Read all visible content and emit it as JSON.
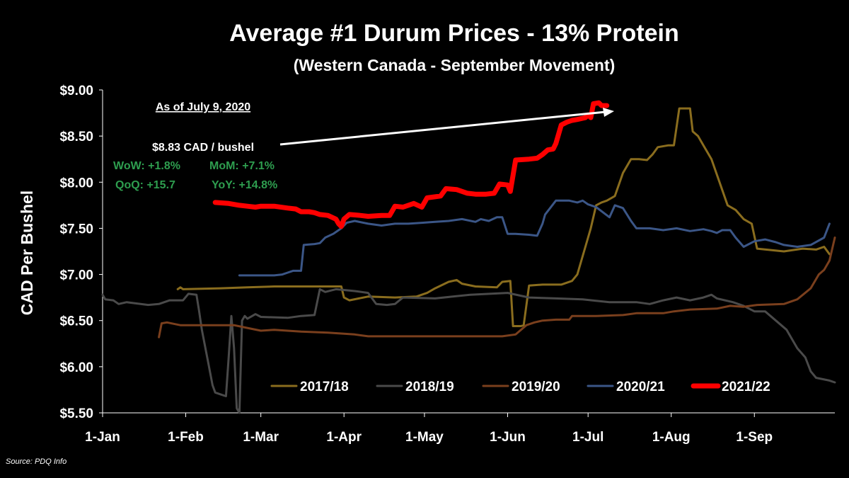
{
  "colors": {
    "background": "#000000",
    "text": "#ffffff",
    "stats_green": "#2e9e4f",
    "arrow": "#ffffff",
    "series_2017_18": "#8a6d1e",
    "series_2018_19": "#4a4a4a",
    "series_2019_20": "#7a3f1d",
    "series_2020_21": "#3b5687",
    "series_2021_22": "#ff0000"
  },
  "annotation": {
    "as_of": "As of July 9, 2020",
    "price": "$8.83 CAD / bushel",
    "wow": "WoW: +1.8%",
    "mom": "MoM: +7.1%",
    "qoq": "QoQ: +15.7",
    "yoy": "YoY: +14.8%"
  },
  "source": "Source: PDQ Info",
  "chart_data": {
    "type": "line",
    "title": "Average #1 Durum Prices - 13% Protein",
    "subtitle": "(Western Canada - September Movement)",
    "xlabel": "",
    "ylabel": "CAD Per Bushel",
    "x_unit": "day of year",
    "x_range": [
      1,
      272
    ],
    "ylim": [
      5.5,
      9.0
    ],
    "x_ticks": [
      {
        "day": 1,
        "label": "1-Jan"
      },
      {
        "day": 32,
        "label": "1-Feb"
      },
      {
        "day": 60,
        "label": "1-Mar"
      },
      {
        "day": 91,
        "label": "1-Apr"
      },
      {
        "day": 121,
        "label": "1-May"
      },
      {
        "day": 152,
        "label": "1-Jun"
      },
      {
        "day": 182,
        "label": "1-Jul"
      },
      {
        "day": 213,
        "label": "1-Aug"
      },
      {
        "day": 244,
        "label": "1-Sep"
      }
    ],
    "y_ticks": [
      {
        "value": 5.5,
        "label": "$5.50"
      },
      {
        "value": 6.0,
        "label": "$6.00"
      },
      {
        "value": 6.5,
        "label": "$6.50"
      },
      {
        "value": 7.0,
        "label": "$7.00"
      },
      {
        "value": 7.5,
        "label": "$7.50"
      },
      {
        "value": 8.0,
        "label": "$8.00"
      },
      {
        "value": 8.5,
        "label": "$8.50"
      },
      {
        "value": 9.0,
        "label": "$9.00"
      }
    ],
    "grid": false,
    "legend_position": "bottom-right",
    "series": [
      {
        "name": "2017/18",
        "color": "#8a6d1e",
        "points": [
          [
            29,
            6.84
          ],
          [
            30,
            6.86
          ],
          [
            31,
            6.84
          ],
          [
            45,
            6.85
          ],
          [
            55,
            6.86
          ],
          [
            65,
            6.87
          ],
          [
            80,
            6.87
          ],
          [
            90,
            6.87
          ],
          [
            91,
            6.75
          ],
          [
            93,
            6.72
          ],
          [
            100,
            6.76
          ],
          [
            110,
            6.75
          ],
          [
            118,
            6.76
          ],
          [
            122,
            6.8
          ],
          [
            125,
            6.85
          ],
          [
            130,
            6.92
          ],
          [
            133,
            6.94
          ],
          [
            135,
            6.9
          ],
          [
            140,
            6.87
          ],
          [
            148,
            6.86
          ],
          [
            150,
            6.92
          ],
          [
            153,
            6.93
          ],
          [
            154,
            6.44
          ],
          [
            157,
            6.44
          ],
          [
            158,
            6.45
          ],
          [
            160,
            6.88
          ],
          [
            165,
            6.89
          ],
          [
            172,
            6.89
          ],
          [
            176,
            6.93
          ],
          [
            178,
            7.0
          ],
          [
            180,
            7.2
          ],
          [
            182,
            7.4
          ],
          [
            183,
            7.5
          ],
          [
            185,
            7.75
          ],
          [
            187,
            7.78
          ],
          [
            189,
            7.8
          ],
          [
            192,
            7.85
          ],
          [
            195,
            8.1
          ],
          [
            198,
            8.25
          ],
          [
            201,
            8.25
          ],
          [
            204,
            8.24
          ],
          [
            206,
            8.3
          ],
          [
            208,
            8.38
          ],
          [
            212,
            8.4
          ],
          [
            214,
            8.4
          ],
          [
            216,
            8.8
          ],
          [
            220,
            8.8
          ],
          [
            221,
            8.55
          ],
          [
            223,
            8.5
          ],
          [
            225,
            8.4
          ],
          [
            228,
            8.25
          ],
          [
            231,
            8.0
          ],
          [
            234,
            7.75
          ],
          [
            237,
            7.7
          ],
          [
            240,
            7.6
          ],
          [
            243,
            7.55
          ],
          [
            245,
            7.28
          ],
          [
            255,
            7.25
          ],
          [
            262,
            7.28
          ],
          [
            267,
            7.27
          ],
          [
            270,
            7.3
          ],
          [
            272,
            7.22
          ]
        ]
      },
      {
        "name": "2018/19",
        "color": "#4a4a4a",
        "points": [
          [
            1,
            6.78
          ],
          [
            2,
            6.73
          ],
          [
            5,
            6.72
          ],
          [
            7,
            6.68
          ],
          [
            10,
            6.7
          ],
          [
            18,
            6.67
          ],
          [
            22,
            6.68
          ],
          [
            26,
            6.72
          ],
          [
            31,
            6.72
          ],
          [
            33,
            6.79
          ],
          [
            36,
            6.78
          ],
          [
            37,
            6.6
          ],
          [
            38,
            6.4
          ],
          [
            40,
            6.1
          ],
          [
            42,
            5.8
          ],
          [
            43,
            5.72
          ],
          [
            45,
            5.7
          ],
          [
            47,
            5.68
          ],
          [
            48,
            6.1
          ],
          [
            49,
            6.55
          ],
          [
            50,
            6.2
          ],
          [
            51,
            5.55
          ],
          [
            52,
            5.5
          ],
          [
            53,
            6.5
          ],
          [
            54,
            6.55
          ],
          [
            55,
            6.52
          ],
          [
            58,
            6.57
          ],
          [
            60,
            6.54
          ],
          [
            70,
            6.53
          ],
          [
            75,
            6.55
          ],
          [
            80,
            6.56
          ],
          [
            82,
            6.84
          ],
          [
            84,
            6.81
          ],
          [
            88,
            6.84
          ],
          [
            95,
            6.82
          ],
          [
            100,
            6.8
          ],
          [
            103,
            6.68
          ],
          [
            107,
            6.67
          ],
          [
            110,
            6.68
          ],
          [
            113,
            6.75
          ],
          [
            125,
            6.74
          ],
          [
            138,
            6.78
          ],
          [
            152,
            6.8
          ],
          [
            160,
            6.75
          ],
          [
            170,
            6.74
          ],
          [
            180,
            6.73
          ],
          [
            190,
            6.7
          ],
          [
            200,
            6.7
          ],
          [
            205,
            6.68
          ],
          [
            210,
            6.72
          ],
          [
            215,
            6.75
          ],
          [
            220,
            6.72
          ],
          [
            225,
            6.75
          ],
          [
            228,
            6.78
          ],
          [
            230,
            6.74
          ],
          [
            236,
            6.7
          ],
          [
            240,
            6.66
          ],
          [
            244,
            6.6
          ],
          [
            248,
            6.6
          ],
          [
            252,
            6.5
          ],
          [
            256,
            6.4
          ],
          [
            260,
            6.2
          ],
          [
            263,
            6.1
          ],
          [
            265,
            5.95
          ],
          [
            267,
            5.88
          ],
          [
            272,
            5.85
          ],
          [
            274,
            5.83
          ]
        ]
      },
      {
        "name": "2019/20",
        "color": "#7a3f1d",
        "points": [
          [
            22,
            6.32
          ],
          [
            23,
            6.47
          ],
          [
            25,
            6.48
          ],
          [
            30,
            6.45
          ],
          [
            40,
            6.45
          ],
          [
            50,
            6.45
          ],
          [
            55,
            6.42
          ],
          [
            60,
            6.39
          ],
          [
            65,
            6.4
          ],
          [
            75,
            6.38
          ],
          [
            85,
            6.37
          ],
          [
            95,
            6.35
          ],
          [
            100,
            6.33
          ],
          [
            120,
            6.33
          ],
          [
            150,
            6.33
          ],
          [
            155,
            6.35
          ],
          [
            157,
            6.4
          ],
          [
            159,
            6.45
          ],
          [
            162,
            6.48
          ],
          [
            165,
            6.5
          ],
          [
            170,
            6.51
          ],
          [
            175,
            6.51
          ],
          [
            176,
            6.55
          ],
          [
            185,
            6.55
          ],
          [
            195,
            6.56
          ],
          [
            200,
            6.58
          ],
          [
            210,
            6.58
          ],
          [
            214,
            6.6
          ],
          [
            220,
            6.62
          ],
          [
            230,
            6.63
          ],
          [
            235,
            6.66
          ],
          [
            240,
            6.65
          ],
          [
            245,
            6.67
          ],
          [
            255,
            6.68
          ],
          [
            260,
            6.73
          ],
          [
            265,
            6.85
          ],
          [
            268,
            7.0
          ],
          [
            270,
            7.05
          ],
          [
            272,
            7.15
          ],
          [
            274,
            7.4
          ]
        ]
      },
      {
        "name": "2020/21",
        "color": "#3b5687",
        "points": [
          [
            52,
            6.99
          ],
          [
            55,
            6.99
          ],
          [
            65,
            6.99
          ],
          [
            68,
            7.0
          ],
          [
            70,
            7.02
          ],
          [
            72,
            7.04
          ],
          [
            75,
            7.04
          ],
          [
            76,
            7.32
          ],
          [
            80,
            7.33
          ],
          [
            82,
            7.34
          ],
          [
            84,
            7.4
          ],
          [
            87,
            7.44
          ],
          [
            90,
            7.5
          ],
          [
            92,
            7.56
          ],
          [
            95,
            7.58
          ],
          [
            100,
            7.55
          ],
          [
            105,
            7.53
          ],
          [
            110,
            7.55
          ],
          [
            115,
            7.55
          ],
          [
            120,
            7.56
          ],
          [
            125,
            7.57
          ],
          [
            130,
            7.58
          ],
          [
            135,
            7.6
          ],
          [
            140,
            7.57
          ],
          [
            142,
            7.6
          ],
          [
            145,
            7.58
          ],
          [
            148,
            7.62
          ],
          [
            150,
            7.62
          ],
          [
            152,
            7.44
          ],
          [
            155,
            7.44
          ],
          [
            160,
            7.43
          ],
          [
            163,
            7.42
          ],
          [
            165,
            7.55
          ],
          [
            166,
            7.65
          ],
          [
            170,
            7.8
          ],
          [
            175,
            7.8
          ],
          [
            178,
            7.78
          ],
          [
            180,
            7.8
          ],
          [
            182,
            7.76
          ],
          [
            185,
            7.73
          ],
          [
            190,
            7.62
          ],
          [
            192,
            7.75
          ],
          [
            195,
            7.72
          ],
          [
            198,
            7.58
          ],
          [
            200,
            7.5
          ],
          [
            205,
            7.5
          ],
          [
            210,
            7.48
          ],
          [
            215,
            7.5
          ],
          [
            220,
            7.47
          ],
          [
            225,
            7.49
          ],
          [
            228,
            7.47
          ],
          [
            230,
            7.45
          ],
          [
            232,
            7.48
          ],
          [
            235,
            7.48
          ],
          [
            237,
            7.4
          ],
          [
            240,
            7.3
          ],
          [
            244,
            7.36
          ],
          [
            248,
            7.38
          ],
          [
            252,
            7.35
          ],
          [
            255,
            7.32
          ],
          [
            260,
            7.3
          ],
          [
            265,
            7.32
          ],
          [
            270,
            7.4
          ],
          [
            272,
            7.55
          ]
        ]
      },
      {
        "name": "2021/22",
        "color": "#ff0000",
        "points": [
          [
            43,
            7.78
          ],
          [
            48,
            7.77
          ],
          [
            52,
            7.75
          ],
          [
            55,
            7.74
          ],
          [
            58,
            7.73
          ],
          [
            60,
            7.74
          ],
          [
            65,
            7.74
          ],
          [
            70,
            7.72
          ],
          [
            73,
            7.71
          ],
          [
            75,
            7.68
          ],
          [
            78,
            7.68
          ],
          [
            80,
            7.67
          ],
          [
            82,
            7.65
          ],
          [
            85,
            7.64
          ],
          [
            88,
            7.6
          ],
          [
            89,
            7.55
          ],
          [
            90,
            7.52
          ],
          [
            91,
            7.6
          ],
          [
            93,
            7.65
          ],
          [
            97,
            7.64
          ],
          [
            100,
            7.63
          ],
          [
            105,
            7.64
          ],
          [
            108,
            7.64
          ],
          [
            110,
            7.74
          ],
          [
            113,
            7.73
          ],
          [
            117,
            7.77
          ],
          [
            120,
            7.73
          ],
          [
            122,
            7.83
          ],
          [
            127,
            7.85
          ],
          [
            129,
            7.93
          ],
          [
            133,
            7.92
          ],
          [
            137,
            7.88
          ],
          [
            140,
            7.87
          ],
          [
            144,
            7.87
          ],
          [
            147,
            7.88
          ],
          [
            149,
            7.98
          ],
          [
            152,
            7.97
          ],
          [
            153,
            7.9
          ],
          [
            155,
            8.24
          ],
          [
            160,
            8.25
          ],
          [
            163,
            8.26
          ],
          [
            165,
            8.3
          ],
          [
            167,
            8.35
          ],
          [
            169,
            8.36
          ],
          [
            170,
            8.42
          ],
          [
            172,
            8.62
          ],
          [
            174,
            8.65
          ],
          [
            176,
            8.67
          ],
          [
            178,
            8.68
          ],
          [
            181,
            8.7
          ],
          [
            182,
            8.73
          ],
          [
            183,
            8.7
          ],
          [
            184,
            8.85
          ],
          [
            186,
            8.86
          ],
          [
            187,
            8.83
          ],
          [
            189,
            8.83
          ]
        ]
      }
    ]
  }
}
